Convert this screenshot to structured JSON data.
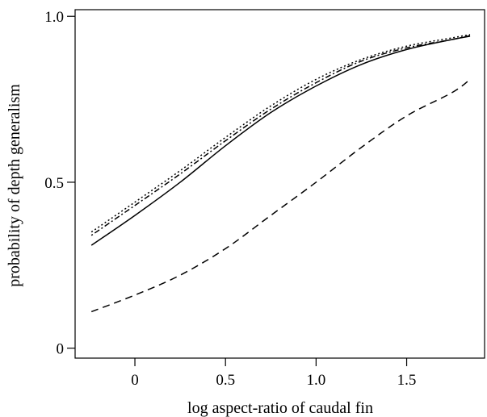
{
  "chart_data": {
    "type": "line",
    "title": "",
    "xlabel": "log aspect-ratio of caudal fin",
    "ylabel": "probability of depth generalism",
    "xlim": [
      -0.33,
      1.93
    ],
    "ylim": [
      -0.03,
      1.02
    ],
    "xticks": [
      0,
      0.5,
      1.0,
      1.5
    ],
    "xtick_labels": [
      "0",
      "0.5",
      "1.0",
      "1.5"
    ],
    "yticks": [
      0,
      0.5,
      1.0
    ],
    "ytick_labels": [
      "0",
      "0.5",
      "1.0"
    ],
    "grid": false,
    "series": [
      {
        "style": "solid",
        "x": [
          -0.24,
          0,
          0.25,
          0.5,
          0.75,
          1.0,
          1.25,
          1.5,
          1.75,
          1.85
        ],
        "y": [
          0.31,
          0.4,
          0.5,
          0.61,
          0.71,
          0.79,
          0.855,
          0.9,
          0.93,
          0.94
        ]
      },
      {
        "style": "dashed",
        "x": [
          -0.24,
          0,
          0.25,
          0.5,
          0.75,
          1.0,
          1.25,
          1.5,
          1.75,
          1.85
        ],
        "y": [
          0.11,
          0.16,
          0.22,
          0.3,
          0.4,
          0.5,
          0.605,
          0.7,
          0.77,
          0.81
        ]
      },
      {
        "style": "dotted",
        "x": [
          -0.24,
          0,
          0.25,
          0.5,
          0.75,
          1.0,
          1.25,
          1.5,
          1.75,
          1.85
        ],
        "y": [
          0.35,
          0.44,
          0.535,
          0.635,
          0.73,
          0.81,
          0.87,
          0.91,
          0.935,
          0.945
        ]
      },
      {
        "style": "dotdash",
        "x": [
          -0.24,
          0,
          0.25,
          0.5,
          0.75,
          1.0,
          1.25,
          1.5,
          1.75,
          1.85
        ],
        "y": [
          0.34,
          0.43,
          0.525,
          0.625,
          0.72,
          0.8,
          0.865,
          0.905,
          0.93,
          0.942
        ]
      }
    ]
  }
}
